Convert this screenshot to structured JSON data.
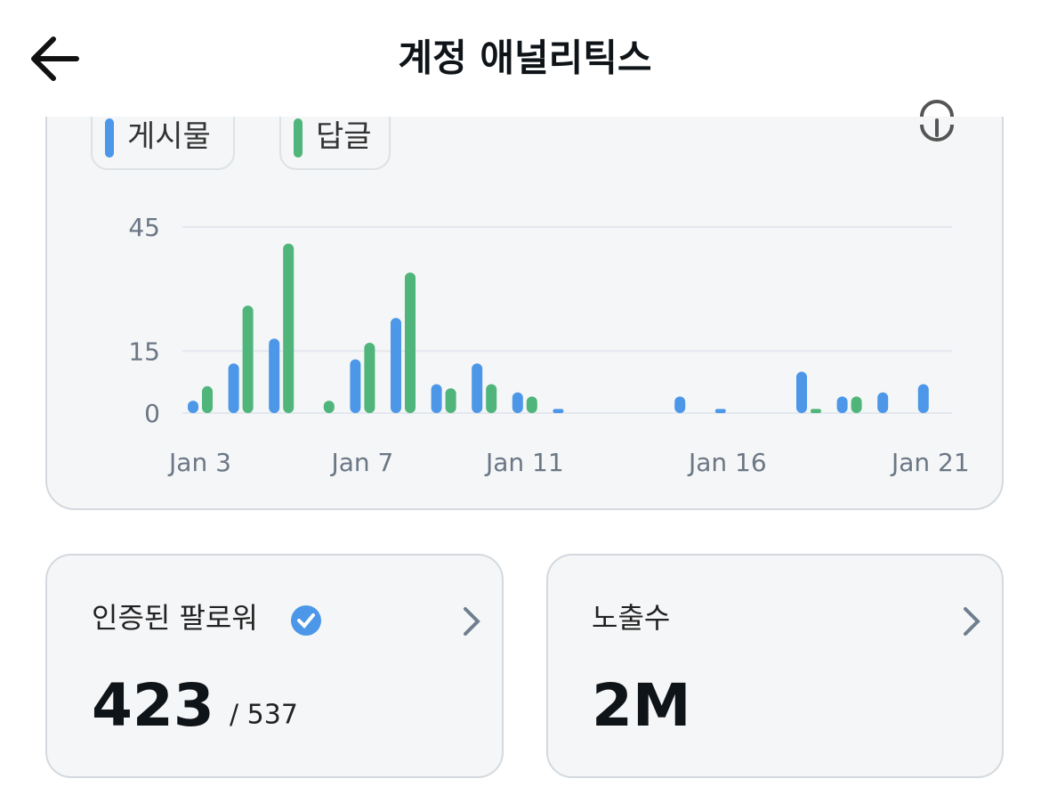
{
  "header": {
    "title": "계정 애널리틱스"
  },
  "chart_data": {
    "type": "bar",
    "categories": [
      "Jan 3",
      null,
      null,
      null,
      "Jan 7",
      null,
      null,
      null,
      "Jan 11",
      null,
      null,
      null,
      null,
      "Jan 16",
      null,
      null,
      null,
      null,
      "Jan 21"
    ],
    "series": [
      {
        "name": "게시물",
        "color": "#4c97e8",
        "values": [
          3,
          12,
          18,
          0,
          13,
          23,
          7,
          12,
          5,
          1,
          0,
          0,
          4,
          1,
          0,
          10,
          4,
          5,
          7
        ]
      },
      {
        "name": "답글",
        "color": "#4fb57a",
        "values": [
          6.5,
          26,
          41,
          3,
          17,
          34,
          6,
          7,
          4,
          0,
          0,
          0,
          0,
          0,
          0,
          1,
          4,
          0,
          0
        ]
      }
    ],
    "ylim": [
      0,
      45
    ],
    "yticks": [
      0,
      15,
      45
    ],
    "grid": true
  },
  "cards": [
    {
      "label": "인증된 팔로워",
      "value": "423",
      "total": "/ 537"
    },
    {
      "label": "노출수",
      "value": "2M"
    }
  ]
}
